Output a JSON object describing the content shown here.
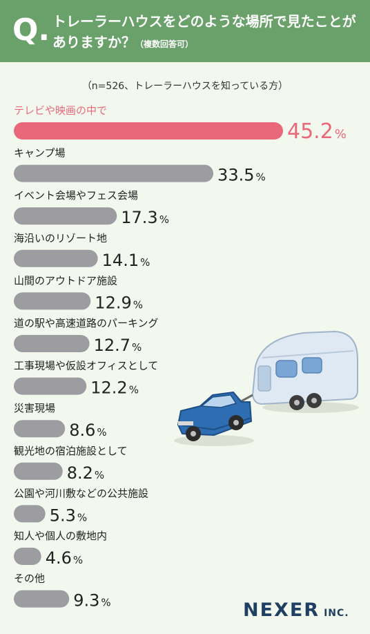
{
  "header": {
    "q_mark": "Q.",
    "question": "トレーラーハウスをどのような場所で見たことがありますか？",
    "note": "（複数回答可）"
  },
  "sample_note": "（n=526、トレーラーハウスを知っている方）",
  "brand": {
    "name": "NEXER",
    "suffix": "INC."
  },
  "colors": {
    "highlight": "#e8687a",
    "bar": "#9c9ca1",
    "header": "#6aa06a",
    "brand": "#1f4063"
  },
  "chart_data": {
    "type": "bar",
    "orientation": "horizontal",
    "unit": "%",
    "categories": [
      "テレビや映画の中で",
      "キャンプ場",
      "イベント会場やフェス会場",
      "海沿いのリゾート地",
      "山間のアウトドア施設",
      "道の駅や高速道路のパーキング",
      "工事現場や仮設オフィスとして",
      "災害現場",
      "観光地の宿泊施設として",
      "公園や河川敷などの公共施設",
      "知人や個人の敷地内",
      "その他"
    ],
    "values": [
      45.2,
      33.5,
      17.3,
      14.1,
      12.9,
      12.7,
      12.2,
      8.6,
      8.2,
      5.3,
      4.6,
      9.3
    ],
    "value_labels": [
      "45.2",
      "33.5",
      "17.3",
      "14.1",
      "12.9",
      "12.7",
      "12.2",
      "8.6",
      "8.2",
      "5.3",
      "4.6",
      "9.3"
    ],
    "highlight_index": 0,
    "xlim": [
      0,
      45.2
    ],
    "grid": false,
    "legend": "none"
  }
}
